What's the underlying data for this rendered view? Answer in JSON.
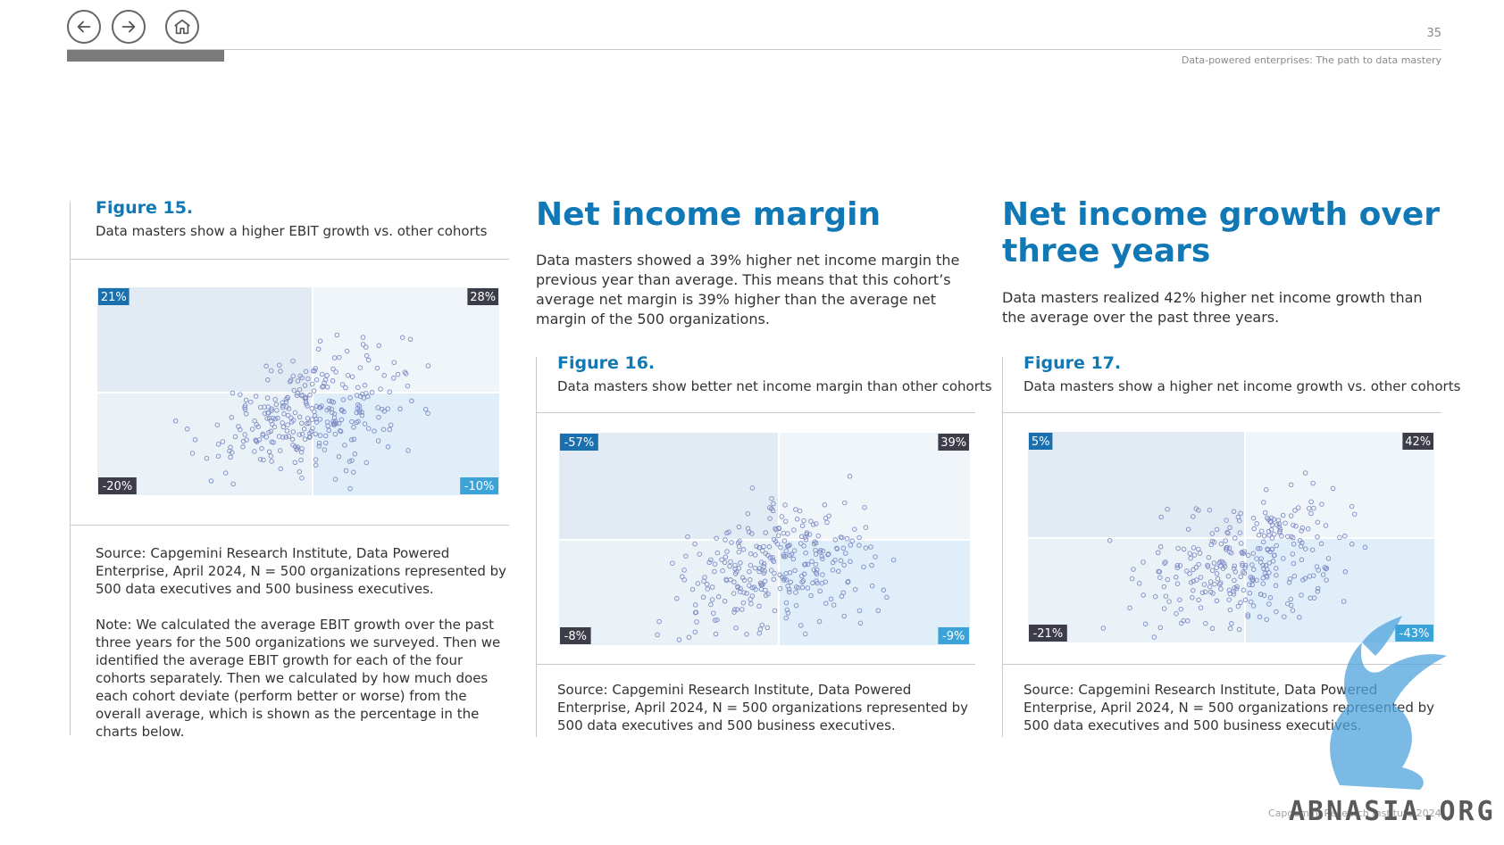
{
  "nav": {
    "back_icon": "arrow-left-icon",
    "forward_icon": "arrow-right-icon",
    "home_icon": "home-icon"
  },
  "header": {
    "page_number": "35",
    "document_title": "Data-powered enterprises: The path to data mastery"
  },
  "figure15": {
    "label": "Figure 15.",
    "caption": "Data masters show a higher EBIT growth vs. other cohorts",
    "source": "Source: Capgemini Research Institute, Data Powered Enterprise, April 2024, N = 500 organizations represented by 500 data executives and 500 business executives.",
    "note": "Note: We calculated the average EBIT growth over the past three years for the 500 organizations we surveyed. Then we identified the average EBIT growth for each of the four cohorts separately. Then we calculated by how much does each cohort deviate (perform better or worse) from the overall average, which is shown as the percentage in the charts below."
  },
  "section_net_income_margin": {
    "title": "Net income margin",
    "body": "Data masters showed a 39% higher net income margin the previous year than average. This means that this cohort’s average net margin is 39% higher than the average net margin of the 500 organizations."
  },
  "figure16": {
    "label": "Figure 16.",
    "caption": "Data masters show better net income margin than other cohorts",
    "source": "Source: Capgemini Research Institute, Data Powered Enterprise, April 2024, N = 500 organizations represented by 500 data executives and 500 business executives."
  },
  "section_net_income_growth": {
    "title": "Net income growth over three years",
    "body": "Data masters realized 42% higher net income growth than the average over the past three years."
  },
  "figure17": {
    "label": "Figure 17.",
    "caption": "Data masters show a higher net income growth vs. other cohorts",
    "source": "Source: Capgemini Research Institute, Data Powered Enterprise, April 2024, N = 500 organizations represented by 500 data executives and 500 business executives."
  },
  "footer": {
    "watermark": "ABNASIA.ORG",
    "copyright": "Capgemini Research Institute 2024"
  },
  "colors": {
    "accent": "#1078b4",
    "badge_blue": "#1a6faf",
    "badge_light_blue": "#3ba3d8",
    "badge_dark": "#3d3d4a",
    "quad_tl": "#e2ebf3",
    "quad_tr": "#f0f5fa",
    "quad_bl": "#eaf2f8",
    "quad_br": "#dfeef8",
    "dot": "#7e8cc4"
  },
  "chart_data": [
    {
      "type": "scatter",
      "title": "Figure 15.",
      "quadrants": [
        {
          "position": "top-left",
          "value": "21%"
        },
        {
          "position": "top-right",
          "value": "28%"
        },
        {
          "position": "bottom-left",
          "value": "-20%"
        },
        {
          "position": "bottom-right",
          "value": "-10%"
        }
      ],
      "points": 300
    },
    {
      "type": "scatter",
      "title": "Figure 16.",
      "quadrants": [
        {
          "position": "top-left",
          "value": "-57%"
        },
        {
          "position": "top-right",
          "value": "39%"
        },
        {
          "position": "bottom-left",
          "value": "-8%"
        },
        {
          "position": "bottom-right",
          "value": "-9%"
        }
      ],
      "points": 300
    },
    {
      "type": "scatter",
      "title": "Figure 17.",
      "quadrants": [
        {
          "position": "top-left",
          "value": "5%"
        },
        {
          "position": "top-right",
          "value": "42%"
        },
        {
          "position": "bottom-left",
          "value": "-21%"
        },
        {
          "position": "bottom-right",
          "value": "-43%"
        }
      ],
      "points": 300
    }
  ]
}
